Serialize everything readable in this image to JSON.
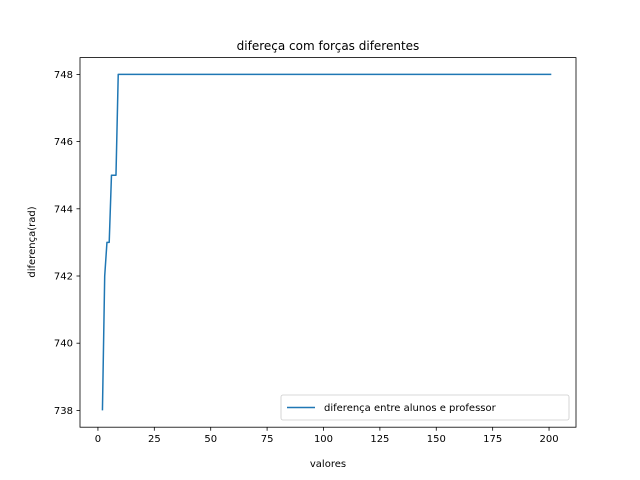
{
  "chart_data": {
    "type": "line",
    "title": "difereça com forças diferentes",
    "xlabel": "valores",
    "ylabel": "diferença(rad)",
    "xlim": [
      -7.95,
      211.95
    ],
    "ylim": [
      737.5,
      748.5
    ],
    "xticks": [
      0,
      25,
      50,
      75,
      100,
      125,
      150,
      175,
      200
    ],
    "yticks": [
      738,
      740,
      742,
      744,
      746,
      748
    ],
    "grid": false,
    "legend_position": "lower right",
    "colors": {
      "series": "#1f77b4"
    },
    "series": [
      {
        "name": "diferença entre alunos e professor",
        "x": [
          2,
          3,
          4,
          5,
          6,
          7,
          8,
          9,
          201
        ],
        "y": [
          738,
          742,
          743,
          743,
          745,
          745,
          745,
          748,
          748
        ]
      }
    ]
  }
}
